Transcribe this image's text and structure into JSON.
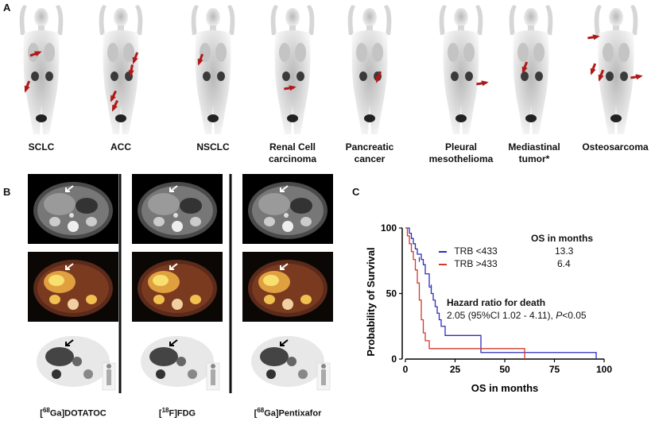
{
  "panel_a": {
    "letter": "A",
    "labels": [
      {
        "line1": "SCLC",
        "line2": ""
      },
      {
        "line1": "ACC",
        "line2": ""
      },
      {
        "line1": "NSCLC",
        "line2": ""
      },
      {
        "line1": "Renal Cell",
        "line2": "carcinoma"
      },
      {
        "line1": "Pancreatic",
        "line2": "cancer"
      },
      {
        "line1": "Pleural",
        "line2": "mesothelioma"
      },
      {
        "line1": "Mediastinal",
        "line2": "tumor*"
      },
      {
        "line1": "Osteosarcoma",
        "line2": ""
      }
    ]
  },
  "panel_b": {
    "letter": "B",
    "columns": [
      {
        "label_pre": "[",
        "label_sup": "68",
        "label_post": "Ga]DOTATOC"
      },
      {
        "label_pre": "[",
        "label_sup": "18",
        "label_post": "F]FDG"
      },
      {
        "label_pre": "[",
        "label_sup": "68",
        "label_post": "Ga]Pentixafor"
      }
    ]
  },
  "panel_c": {
    "letter": "C",
    "header": "OS in months",
    "legend": [
      {
        "label": "TRB <433",
        "os": "13.3",
        "color": "#2d2dbe"
      },
      {
        "label": "TRB >433",
        "os": "6.4",
        "color": "#d43a2a"
      }
    ],
    "hr_title": "Hazard ratio for death",
    "hr_text": "2.05 (95%CI 1.02 - 4.11), ",
    "hr_p": "P",
    "hr_tail": "<0.05"
  },
  "chart_data": {
    "type": "line",
    "title": "",
    "xlabel": "OS in months",
    "ylabel": "Probability of Survival",
    "xlim": [
      0,
      100
    ],
    "ylim": [
      0,
      100
    ],
    "xticks": [
      "0",
      "25",
      "50",
      "75",
      "100"
    ],
    "yticks": [
      "0",
      "50",
      "100"
    ],
    "series": [
      {
        "name": "TRB <433",
        "color": "#2d2dbe",
        "steps": [
          [
            0,
            100
          ],
          [
            2,
            100
          ],
          [
            2,
            96
          ],
          [
            3,
            96
          ],
          [
            3,
            92
          ],
          [
            4,
            92
          ],
          [
            4,
            88
          ],
          [
            5,
            88
          ],
          [
            5,
            84
          ],
          [
            6,
            84
          ],
          [
            6,
            80
          ],
          [
            8,
            80
          ],
          [
            8,
            76
          ],
          [
            9,
            76
          ],
          [
            9,
            72
          ],
          [
            10,
            72
          ],
          [
            10,
            65
          ],
          [
            12,
            65
          ],
          [
            12,
            55
          ],
          [
            13,
            55
          ],
          [
            13,
            50
          ],
          [
            14,
            50
          ],
          [
            14,
            45
          ],
          [
            15,
            45
          ],
          [
            15,
            40
          ],
          [
            16,
            40
          ],
          [
            16,
            35
          ],
          [
            17,
            35
          ],
          [
            17,
            30
          ],
          [
            18,
            30
          ],
          [
            18,
            25
          ],
          [
            20,
            25
          ],
          [
            20,
            18
          ],
          [
            38,
            18
          ],
          [
            38,
            5
          ],
          [
            96,
            5
          ],
          [
            96,
            0
          ]
        ],
        "censors": [
          [
            7,
            76
          ],
          [
            13,
            55
          ]
        ]
      },
      {
        "name": "TRB >433",
        "color": "#d43a2a",
        "steps": [
          [
            0,
            100
          ],
          [
            1,
            100
          ],
          [
            1,
            94
          ],
          [
            2,
            94
          ],
          [
            2,
            88
          ],
          [
            3,
            88
          ],
          [
            3,
            82
          ],
          [
            4,
            82
          ],
          [
            4,
            76
          ],
          [
            5,
            76
          ],
          [
            5,
            68
          ],
          [
            6,
            68
          ],
          [
            6,
            58
          ],
          [
            7,
            58
          ],
          [
            7,
            45
          ],
          [
            8,
            45
          ],
          [
            8,
            30
          ],
          [
            9,
            30
          ],
          [
            9,
            20
          ],
          [
            10,
            20
          ],
          [
            10,
            14
          ],
          [
            12,
            14
          ],
          [
            12,
            8
          ],
          [
            37,
            8
          ],
          [
            37,
            8
          ],
          [
            60,
            8
          ],
          [
            60,
            0
          ]
        ],
        "censors": []
      }
    ]
  }
}
